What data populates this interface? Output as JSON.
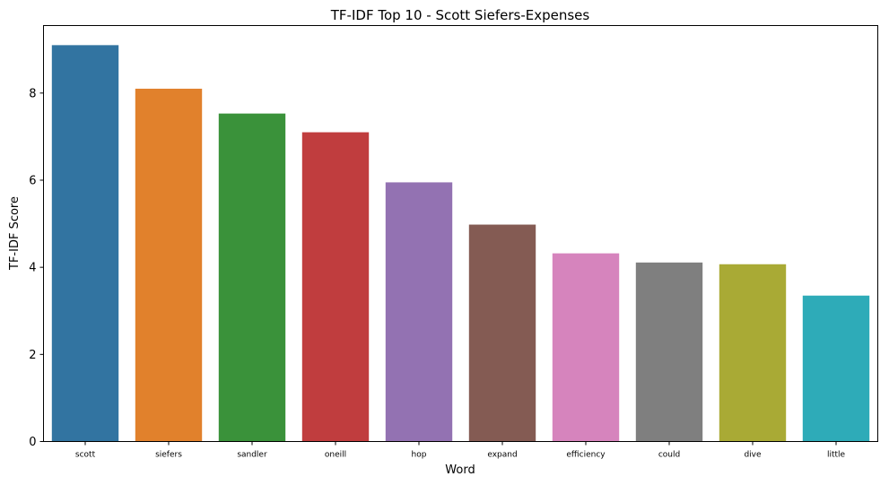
{
  "chart_data": {
    "type": "bar",
    "title": "TF-IDF Top 10 - Scott Siefers-Expenses",
    "xlabel": "Word",
    "ylabel": "TF-IDF Score",
    "categories": [
      "scott",
      "siefers",
      "sandler",
      "oneill",
      "hop",
      "expand",
      "efficiency",
      "could",
      "dive",
      "little"
    ],
    "values": [
      9.1,
      8.1,
      7.53,
      7.1,
      5.95,
      4.98,
      4.32,
      4.11,
      4.07,
      3.35
    ],
    "colors": [
      "#3274a1",
      "#e1812c",
      "#3a923a",
      "#c03d3e",
      "#9372b2",
      "#845b53",
      "#d684bd",
      "#7f7f7f",
      "#a9aa35",
      "#2eabb8"
    ],
    "ylim": [
      0,
      9.55
    ],
    "yticks": [
      0,
      2,
      4,
      6,
      8
    ],
    "grid": false,
    "legend": "none"
  }
}
